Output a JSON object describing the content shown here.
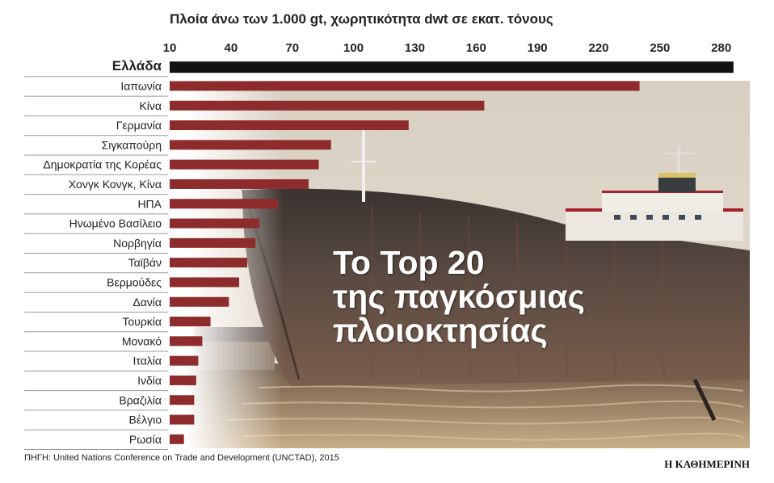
{
  "subtitle": "Πλοία άνω των 1.000 gt, χωρητικότητα dwt σε εκατ. τόνους",
  "headline": [
    "Το Top 20",
    "της παγκόσμιας",
    "πλοιοκτησίας"
  ],
  "source": "ΠΗΓΗ: United Nations Conference on Trade and Development (UNCTAD), 2015",
  "brand": "Η ΚΑΘΗΜΕΡΙΝΗ",
  "colors": {
    "bar": "#8e2b2c",
    "highlight_bar": "#111111",
    "text": "#222222"
  },
  "chart_data": {
    "type": "bar",
    "orientation": "horizontal",
    "title": "",
    "xlabel": "Πλοία άνω των 1.000 gt, χωρητικότητα dwt σε εκατ. τόνους",
    "xlim": [
      10,
      290
    ],
    "xticks": [
      10,
      40,
      70,
      100,
      130,
      160,
      190,
      220,
      250,
      280
    ],
    "highlight": "Ελλάδα",
    "categories": [
      "Ελλάδα",
      "Ιαπωνία",
      "Κίνα",
      "Γερμανία",
      "Σιγκαπούρη",
      "Δημοκρατία της Κορέας",
      "Χονγκ Κονγκ, Κίνα",
      "ΗΠΑ",
      "Ηνωμένο Βασίλειο",
      "Νορβηγία",
      "Ταϊβάν",
      "Βερμούδες",
      "Δανία",
      "Τουρκία",
      "Μονακό",
      "Ιταλία",
      "Ινδία",
      "Βραζιλία",
      "Βέλγιο",
      "Ρωσία"
    ],
    "values": [
      286,
      240,
      164,
      127,
      89,
      83,
      78,
      63,
      54,
      52,
      48,
      44,
      39,
      30,
      26,
      24,
      23,
      22,
      22,
      17
    ]
  }
}
